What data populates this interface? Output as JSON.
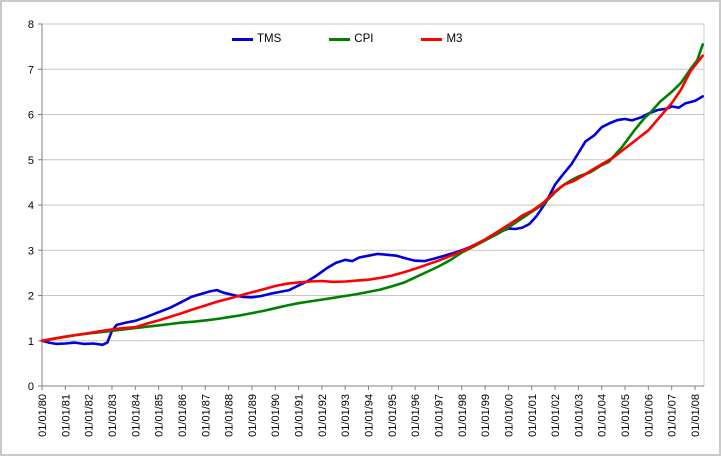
{
  "legend": {
    "items": [
      {
        "label": "TMS",
        "color": "#0000dd"
      },
      {
        "label": "CPI",
        "color": "#008000"
      },
      {
        "label": "M3",
        "color": "#ff0000"
      }
    ]
  },
  "colors": {
    "gridline": "#c6c6c6",
    "axis": "#808080",
    "plot_right_border": "#c6c6c6",
    "background": "#ffffff",
    "frame_border": "#c9c9c9"
  },
  "chart_data": {
    "type": "line",
    "title": "",
    "xlabel": "",
    "ylabel": "",
    "ylim": [
      0,
      8
    ],
    "y_ticks": [
      0,
      1,
      2,
      3,
      4,
      5,
      6,
      7,
      8
    ],
    "x_tick_labels": [
      "01/01/80",
      "01/01/81",
      "01/01/82",
      "01/01/83",
      "01/01/84",
      "01/01/85",
      "01/01/86",
      "01/01/87",
      "01/01/88",
      "01/01/89",
      "01/01/90",
      "01/01/91",
      "01/01/92",
      "01/01/93",
      "01/01/94",
      "01/01/95",
      "01/01/96",
      "01/01/97",
      "01/01/98",
      "01/01/99",
      "01/01/00",
      "01/01/01",
      "01/01/02",
      "01/01/03",
      "01/01/04",
      "01/01/05",
      "01/01/06",
      "01/01/07",
      "01/01/08"
    ],
    "x_start_year": 1980,
    "x_end_year": 2008.33,
    "x_labels_rotated_90": true,
    "grid": true,
    "legend_position": "top",
    "series": [
      {
        "name": "TMS",
        "color": "#0000dd",
        "points": [
          [
            1980.0,
            1.0
          ],
          [
            1980.3,
            0.96
          ],
          [
            1980.6,
            0.93
          ],
          [
            1981.0,
            0.94
          ],
          [
            1981.4,
            0.96
          ],
          [
            1981.8,
            0.93
          ],
          [
            1982.2,
            0.94
          ],
          [
            1982.6,
            0.91
          ],
          [
            1982.8,
            0.96
          ],
          [
            1983.0,
            1.22
          ],
          [
            1983.2,
            1.35
          ],
          [
            1983.6,
            1.4
          ],
          [
            1984.0,
            1.44
          ],
          [
            1984.5,
            1.53
          ],
          [
            1985.0,
            1.63
          ],
          [
            1985.5,
            1.73
          ],
          [
            1986.0,
            1.86
          ],
          [
            1986.4,
            1.97
          ],
          [
            1986.8,
            2.03
          ],
          [
            1987.2,
            2.09
          ],
          [
            1987.5,
            2.12
          ],
          [
            1987.8,
            2.06
          ],
          [
            1988.2,
            2.01
          ],
          [
            1988.6,
            1.97
          ],
          [
            1989.0,
            1.96
          ],
          [
            1989.4,
            1.99
          ],
          [
            1989.8,
            2.04
          ],
          [
            1990.2,
            2.08
          ],
          [
            1990.6,
            2.12
          ],
          [
            1991.0,
            2.22
          ],
          [
            1991.4,
            2.32
          ],
          [
            1991.8,
            2.45
          ],
          [
            1992.2,
            2.6
          ],
          [
            1992.6,
            2.72
          ],
          [
            1993.0,
            2.79
          ],
          [
            1993.3,
            2.76
          ],
          [
            1993.6,
            2.84
          ],
          [
            1994.0,
            2.88
          ],
          [
            1994.4,
            2.92
          ],
          [
            1994.8,
            2.9
          ],
          [
            1995.2,
            2.88
          ],
          [
            1995.6,
            2.82
          ],
          [
            1996.0,
            2.77
          ],
          [
            1996.4,
            2.76
          ],
          [
            1996.8,
            2.81
          ],
          [
            1997.2,
            2.87
          ],
          [
            1997.6,
            2.93
          ],
          [
            1998.0,
            3.0
          ],
          [
            1998.4,
            3.08
          ],
          [
            1998.8,
            3.18
          ],
          [
            1999.2,
            3.28
          ],
          [
            1999.6,
            3.4
          ],
          [
            2000.0,
            3.48
          ],
          [
            2000.3,
            3.47
          ],
          [
            2000.6,
            3.5
          ],
          [
            2000.9,
            3.58
          ],
          [
            2001.2,
            3.75
          ],
          [
            2001.6,
            4.05
          ],
          [
            2002.0,
            4.45
          ],
          [
            2002.3,
            4.65
          ],
          [
            2002.7,
            4.9
          ],
          [
            2003.0,
            5.15
          ],
          [
            2003.3,
            5.4
          ],
          [
            2003.7,
            5.55
          ],
          [
            2004.0,
            5.72
          ],
          [
            2004.4,
            5.82
          ],
          [
            2004.7,
            5.88
          ],
          [
            2005.0,
            5.9
          ],
          [
            2005.3,
            5.87
          ],
          [
            2005.7,
            5.94
          ],
          [
            2006.0,
            6.02
          ],
          [
            2006.4,
            6.1
          ],
          [
            2006.8,
            6.13
          ],
          [
            2007.0,
            6.18
          ],
          [
            2007.3,
            6.15
          ],
          [
            2007.6,
            6.25
          ],
          [
            2008.0,
            6.3
          ],
          [
            2008.33,
            6.4
          ]
        ]
      },
      {
        "name": "CPI",
        "color": "#008000",
        "points": [
          [
            1980.0,
            1.0
          ],
          [
            1980.5,
            1.05
          ],
          [
            1981.0,
            1.09
          ],
          [
            1981.5,
            1.13
          ],
          [
            1982.0,
            1.16
          ],
          [
            1982.5,
            1.19
          ],
          [
            1983.0,
            1.22
          ],
          [
            1983.5,
            1.25
          ],
          [
            1984.0,
            1.28
          ],
          [
            1984.5,
            1.31
          ],
          [
            1985.0,
            1.34
          ],
          [
            1985.5,
            1.37
          ],
          [
            1986.0,
            1.4
          ],
          [
            1986.5,
            1.42
          ],
          [
            1987.0,
            1.45
          ],
          [
            1987.5,
            1.48
          ],
          [
            1988.0,
            1.52
          ],
          [
            1988.5,
            1.56
          ],
          [
            1989.0,
            1.61
          ],
          [
            1989.5,
            1.66
          ],
          [
            1990.0,
            1.72
          ],
          [
            1990.5,
            1.78
          ],
          [
            1991.0,
            1.83
          ],
          [
            1991.5,
            1.87
          ],
          [
            1992.0,
            1.91
          ],
          [
            1992.5,
            1.95
          ],
          [
            1993.0,
            1.99
          ],
          [
            1993.5,
            2.03
          ],
          [
            1994.0,
            2.08
          ],
          [
            1994.5,
            2.13
          ],
          [
            1995.0,
            2.2
          ],
          [
            1995.5,
            2.28
          ],
          [
            1996.0,
            2.4
          ],
          [
            1996.5,
            2.52
          ],
          [
            1997.0,
            2.64
          ],
          [
            1997.5,
            2.78
          ],
          [
            1998.0,
            2.95
          ],
          [
            1998.5,
            3.08
          ],
          [
            1999.0,
            3.22
          ],
          [
            1999.5,
            3.35
          ],
          [
            2000.0,
            3.5
          ],
          [
            2000.5,
            3.68
          ],
          [
            2001.0,
            3.85
          ],
          [
            2001.5,
            4.02
          ],
          [
            2002.0,
            4.28
          ],
          [
            2002.3,
            4.42
          ],
          [
            2002.7,
            4.55
          ],
          [
            2003.0,
            4.63
          ],
          [
            2003.5,
            4.72
          ],
          [
            2004.0,
            4.88
          ],
          [
            2004.3,
            4.95
          ],
          [
            2004.9,
            5.3
          ],
          [
            2005.4,
            5.65
          ],
          [
            2005.8,
            5.9
          ],
          [
            2006.1,
            6.05
          ],
          [
            2006.5,
            6.28
          ],
          [
            2007.0,
            6.5
          ],
          [
            2007.4,
            6.7
          ],
          [
            2007.8,
            7.0
          ],
          [
            2008.1,
            7.2
          ],
          [
            2008.33,
            7.55
          ]
        ]
      },
      {
        "name": "M3",
        "color": "#ff0000",
        "points": [
          [
            1980.0,
            1.0
          ],
          [
            1980.5,
            1.04
          ],
          [
            1981.0,
            1.09
          ],
          [
            1981.5,
            1.13
          ],
          [
            1982.0,
            1.17
          ],
          [
            1982.5,
            1.21
          ],
          [
            1983.0,
            1.25
          ],
          [
            1983.5,
            1.28
          ],
          [
            1984.0,
            1.3
          ],
          [
            1984.5,
            1.38
          ],
          [
            1985.0,
            1.45
          ],
          [
            1985.5,
            1.53
          ],
          [
            1986.0,
            1.61
          ],
          [
            1986.5,
            1.7
          ],
          [
            1987.0,
            1.78
          ],
          [
            1987.5,
            1.86
          ],
          [
            1988.0,
            1.93
          ],
          [
            1988.5,
            2.0
          ],
          [
            1989.0,
            2.07
          ],
          [
            1989.5,
            2.14
          ],
          [
            1990.0,
            2.21
          ],
          [
            1990.5,
            2.26
          ],
          [
            1991.0,
            2.29
          ],
          [
            1991.5,
            2.31
          ],
          [
            1992.0,
            2.32
          ],
          [
            1992.5,
            2.3
          ],
          [
            1993.0,
            2.31
          ],
          [
            1993.5,
            2.33
          ],
          [
            1994.0,
            2.35
          ],
          [
            1994.5,
            2.39
          ],
          [
            1995.0,
            2.44
          ],
          [
            1995.5,
            2.51
          ],
          [
            1996.0,
            2.59
          ],
          [
            1996.5,
            2.68
          ],
          [
            1997.0,
            2.77
          ],
          [
            1997.5,
            2.87
          ],
          [
            1998.0,
            2.98
          ],
          [
            1998.5,
            3.1
          ],
          [
            1999.0,
            3.24
          ],
          [
            1999.5,
            3.4
          ],
          [
            2000.0,
            3.56
          ],
          [
            2000.3,
            3.66
          ],
          [
            2000.6,
            3.77
          ],
          [
            2001.0,
            3.87
          ],
          [
            2001.5,
            4.05
          ],
          [
            2002.0,
            4.3
          ],
          [
            2002.4,
            4.45
          ],
          [
            2002.8,
            4.53
          ],
          [
            2003.2,
            4.65
          ],
          [
            2003.6,
            4.78
          ],
          [
            2004.0,
            4.9
          ],
          [
            2004.5,
            5.05
          ],
          [
            2005.0,
            5.25
          ],
          [
            2005.5,
            5.45
          ],
          [
            2006.0,
            5.65
          ],
          [
            2006.5,
            5.95
          ],
          [
            2007.0,
            6.25
          ],
          [
            2007.4,
            6.55
          ],
          [
            2007.8,
            6.95
          ],
          [
            2008.1,
            7.15
          ],
          [
            2008.33,
            7.3
          ]
        ]
      }
    ]
  }
}
